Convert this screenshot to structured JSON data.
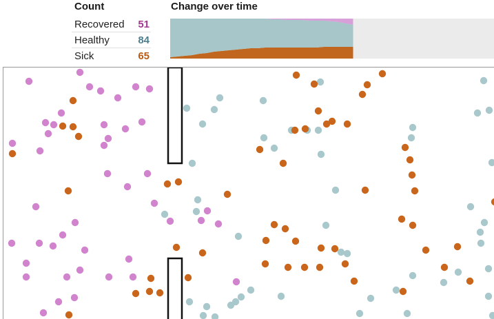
{
  "header": {
    "count_title": "Count",
    "change_title": "Change over time"
  },
  "counts": [
    {
      "key": "recovered",
      "label": "Recovered",
      "value": "51",
      "color": "#a0398f"
    },
    {
      "key": "healthy",
      "label": "Healthy",
      "value": "84",
      "color": "#4e7f8f"
    },
    {
      "key": "sick",
      "label": "Sick",
      "value": "65",
      "color": "#b85c15"
    }
  ],
  "colors": {
    "recovered_dot": "#d283ce",
    "healthy_dot": "#a8c8cc",
    "sick_dot": "#c9661b",
    "chart_background": "#ebebeb",
    "wall_stroke": "#111111"
  },
  "chart_data": {
    "type": "area",
    "stacked": true,
    "series": [
      {
        "name": "Sick",
        "color": "#c0661f",
        "values": [
          2,
          3,
          4,
          5,
          7,
          8,
          10,
          11,
          12,
          13,
          14,
          15,
          15,
          16,
          16,
          16,
          16,
          16,
          16,
          16,
          16,
          17,
          17,
          17,
          17,
          17
        ]
      },
      {
        "name": "Healthy",
        "color": "#a6c6c9",
        "values": [
          56,
          55,
          54,
          53,
          51,
          50,
          48,
          47,
          46,
          45,
          44,
          43,
          43,
          42,
          41,
          41,
          40,
          40,
          40,
          39,
          39,
          38,
          37,
          36,
          34,
          32
        ]
      },
      {
        "name": "Recovered",
        "color": "#d8a0d8",
        "values": [
          0,
          0,
          0,
          0,
          0,
          0,
          0,
          0,
          0,
          0,
          0,
          0,
          0,
          0,
          1,
          1,
          2,
          2,
          2,
          3,
          3,
          3,
          4,
          5,
          7,
          9
        ]
      }
    ],
    "ylim": [
      0,
      58
    ],
    "progress": 0.565
  }
}
